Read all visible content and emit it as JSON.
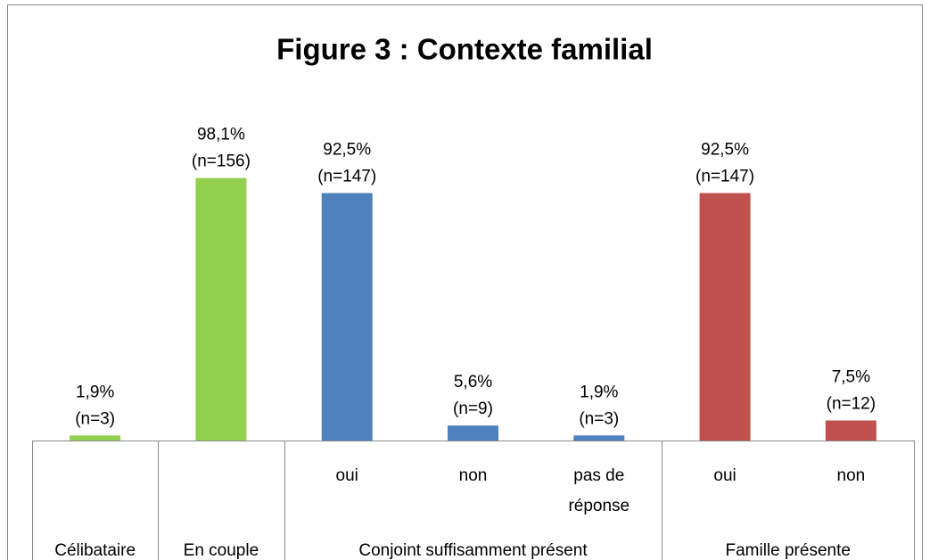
{
  "chart_data": {
    "type": "bar",
    "title": "Figure 3 : Contexte familial",
    "categories": [
      null,
      null,
      "oui",
      "non",
      "pas de réponse",
      "oui",
      "non"
    ],
    "groups": [
      {
        "name": "Célibataire",
        "span": 1
      },
      {
        "name": "En couple",
        "span": 1
      },
      {
        "name": "Conjoint suffisamment présent",
        "span": 3
      },
      {
        "name": "Famille présente",
        "span": 2
      }
    ],
    "values": [
      1.9,
      98.1,
      92.5,
      5.6,
      1.9,
      92.5,
      7.5
    ],
    "value_labels": [
      "1,9%",
      "98,1%",
      "92,5%",
      "5,6%",
      "1,9%",
      "92,5%",
      "7,5%"
    ],
    "n_labels": [
      "(n=3)",
      "(n=156)",
      "(n=147)",
      "(n=9)",
      "(n=3)",
      "(n=147)",
      "(n=12)"
    ],
    "colors": [
      "#92d050",
      "#92d050",
      "#4f81bd",
      "#4f81bd",
      "#4f81bd",
      "#c0504d",
      "#c0504d"
    ],
    "ylim": [
      0,
      100
    ]
  }
}
